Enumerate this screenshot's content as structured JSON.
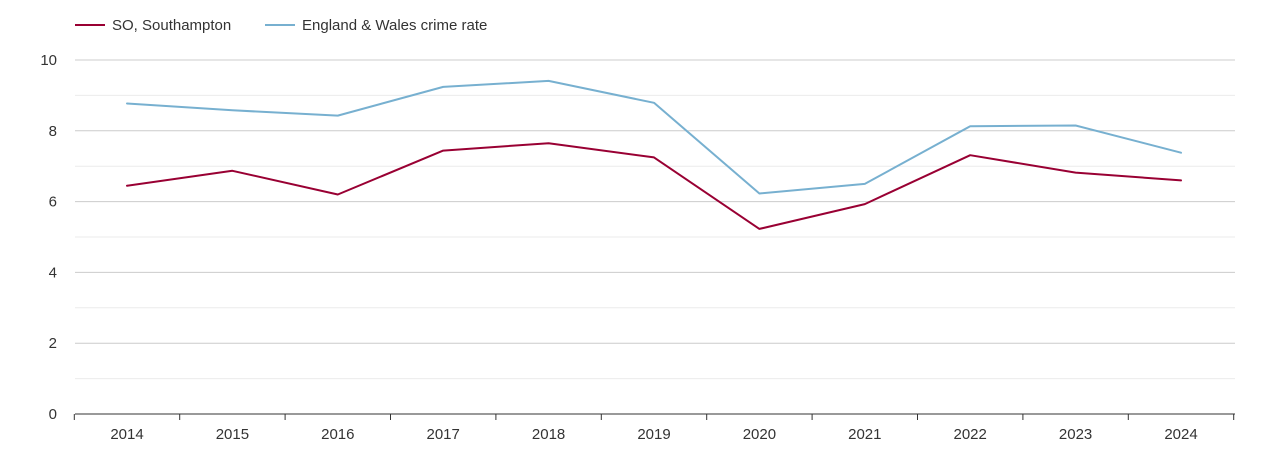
{
  "chart_data": {
    "type": "line",
    "title": "",
    "xlabel": "",
    "ylabel": "",
    "categories": [
      "2014",
      "2015",
      "2016",
      "2017",
      "2018",
      "2019",
      "2020",
      "2021",
      "2022",
      "2023",
      "2024"
    ],
    "ylim": [
      0,
      10
    ],
    "yticks": [
      0,
      2,
      4,
      6,
      8,
      10
    ],
    "grid": true,
    "legend_position": "top-left",
    "series": [
      {
        "name": "SO, Southampton",
        "color": "#990033",
        "values": [
          6.45,
          6.87,
          6.2,
          7.44,
          7.65,
          7.25,
          5.23,
          5.93,
          7.31,
          6.82,
          6.6
        ]
      },
      {
        "name": "England & Wales crime rate",
        "color": "#77b0d0",
        "values": [
          8.77,
          8.58,
          8.43,
          9.24,
          9.41,
          8.79,
          6.23,
          6.5,
          8.13,
          8.15,
          7.38
        ]
      }
    ]
  }
}
